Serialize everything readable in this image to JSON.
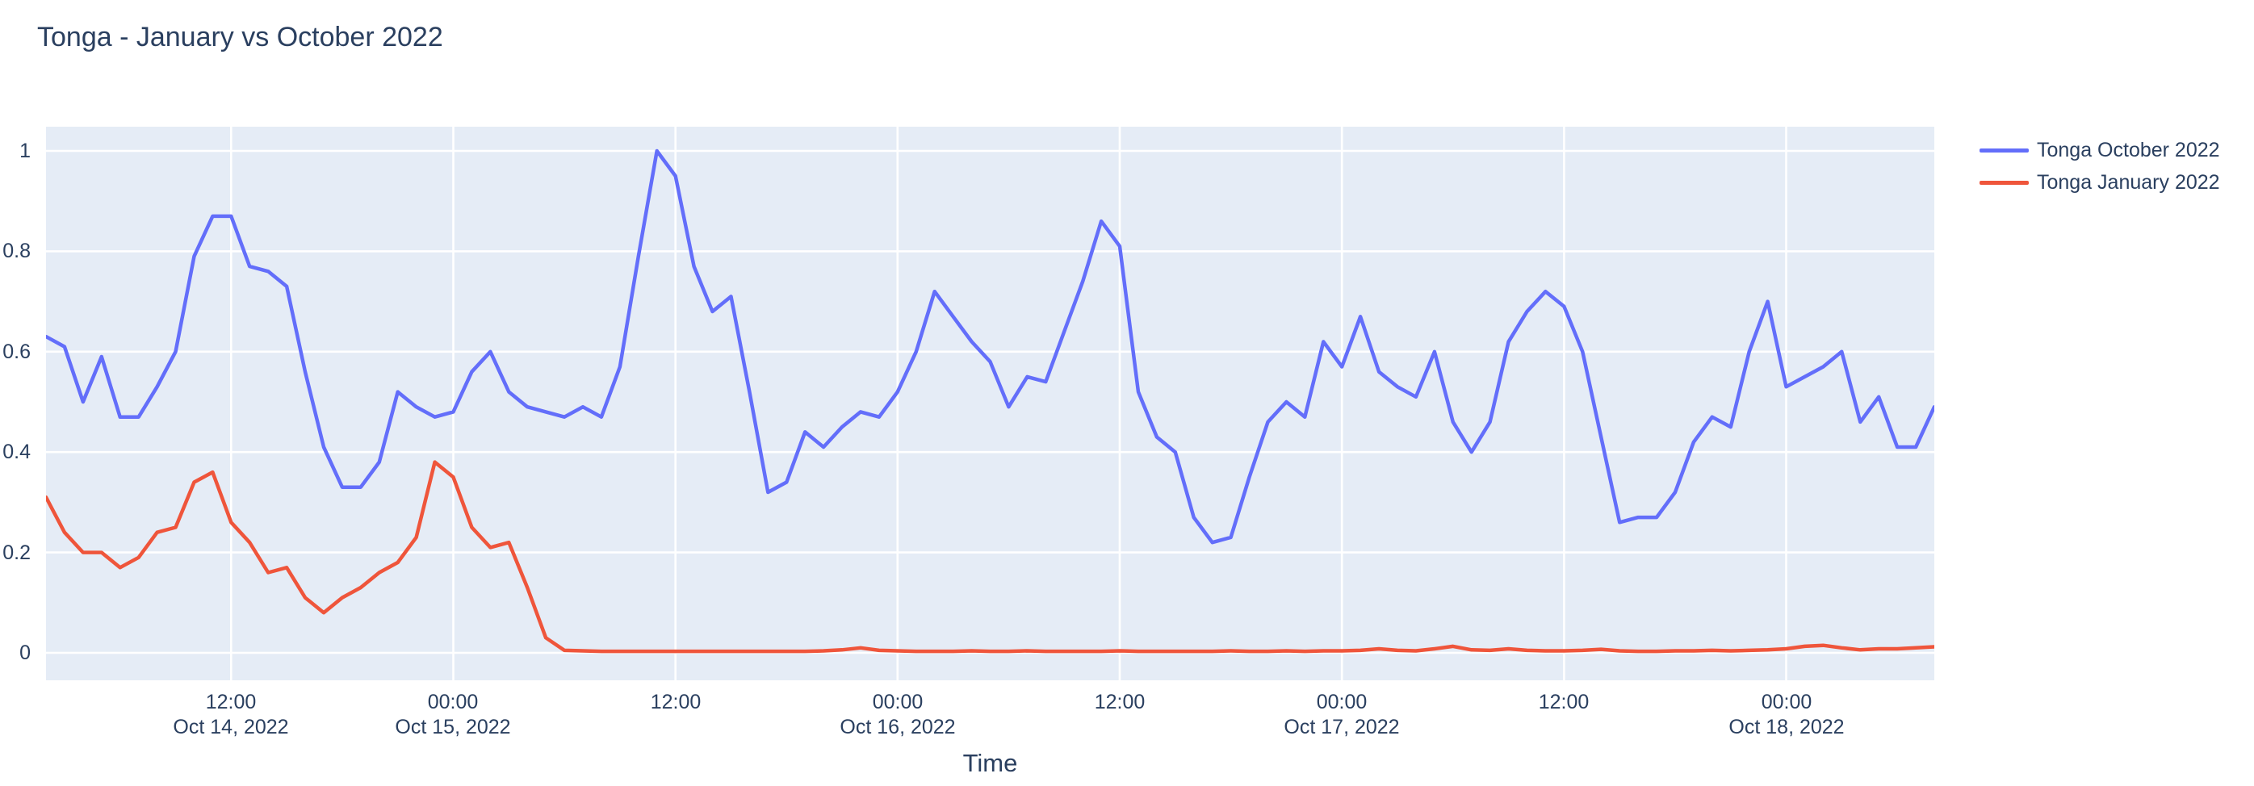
{
  "title": "Tonga - January vs October 2022",
  "colors": {
    "page_background": "#ffffff",
    "plot_background": "#e5ecf6",
    "grid": "#ffffff",
    "font": "#2a3f5f",
    "october_line": "#636efa",
    "january_line": "#ef553b"
  },
  "legend": {
    "position": "top-right-outside",
    "items": [
      {
        "label": "Tonga October 2022",
        "color": "#636efa"
      },
      {
        "label": "Tonga January 2022",
        "color": "#ef553b"
      }
    ]
  },
  "x_axis": {
    "title": "Time",
    "ticks": [
      {
        "hour": 10,
        "line1": "12:00",
        "line2": "Oct 14, 2022"
      },
      {
        "hour": 22,
        "line1": "00:00",
        "line2": "Oct 15, 2022"
      },
      {
        "hour": 34,
        "line1": "12:00",
        "line2": ""
      },
      {
        "hour": 46,
        "line1": "00:00",
        "line2": "Oct 16, 2022"
      },
      {
        "hour": 58,
        "line1": "12:00",
        "line2": ""
      },
      {
        "hour": 70,
        "line1": "00:00",
        "line2": "Oct 17, 2022"
      },
      {
        "hour": 82,
        "line1": "12:00",
        "line2": ""
      },
      {
        "hour": 94,
        "line1": "00:00",
        "line2": "Oct 18, 2022"
      }
    ]
  },
  "y_axis": {
    "ticks": [
      {
        "value": 0,
        "label": "0"
      },
      {
        "value": 0.2,
        "label": "0.2"
      },
      {
        "value": 0.4,
        "label": "0.4"
      },
      {
        "value": 0.6,
        "label": "0.6"
      },
      {
        "value": 0.8,
        "label": "0.8"
      },
      {
        "value": 1,
        "label": "1"
      }
    ]
  },
  "chart_data": {
    "type": "line",
    "title": "Tonga - January vs October 2022",
    "xlabel": "Time",
    "ylabel": "",
    "x_start": "2022-10-14 02:00",
    "x_end": "2022-10-18 08:00",
    "x_interval_hours": 1,
    "ylim": [
      0,
      1
    ],
    "grid": true,
    "legend_position": "right",
    "series": [
      {
        "name": "Tonga October 2022",
        "color": "#636efa",
        "values": [
          0.63,
          0.61,
          0.5,
          0.59,
          0.47,
          0.47,
          0.53,
          0.6,
          0.79,
          0.87,
          0.87,
          0.77,
          0.76,
          0.73,
          0.56,
          0.41,
          0.33,
          0.33,
          0.38,
          0.52,
          0.49,
          0.47,
          0.48,
          0.56,
          0.6,
          0.52,
          0.49,
          0.48,
          0.47,
          0.49,
          0.47,
          0.57,
          0.79,
          1.0,
          0.95,
          0.77,
          0.68,
          0.71,
          0.52,
          0.32,
          0.34,
          0.44,
          0.41,
          0.45,
          0.48,
          0.47,
          0.52,
          0.6,
          0.72,
          0.67,
          0.62,
          0.58,
          0.49,
          0.55,
          0.54,
          0.64,
          0.74,
          0.86,
          0.81,
          0.52,
          0.43,
          0.4,
          0.27,
          0.22,
          0.23,
          0.35,
          0.46,
          0.5,
          0.47,
          0.62,
          0.57,
          0.67,
          0.56,
          0.53,
          0.51,
          0.6,
          0.46,
          0.4,
          0.46,
          0.62,
          0.68,
          0.72,
          0.69,
          0.6,
          0.43,
          0.26,
          0.27,
          0.27,
          0.32,
          0.42,
          0.47,
          0.45,
          0.6,
          0.7,
          0.53,
          0.55,
          0.57,
          0.6,
          0.46,
          0.51,
          0.41,
          0.41,
          0.49
        ]
      },
      {
        "name": "Tonga January 2022",
        "color": "#ef553b",
        "values": [
          0.31,
          0.24,
          0.2,
          0.2,
          0.17,
          0.19,
          0.24,
          0.25,
          0.34,
          0.36,
          0.26,
          0.22,
          0.16,
          0.17,
          0.11,
          0.08,
          0.11,
          0.13,
          0.16,
          0.18,
          0.23,
          0.38,
          0.35,
          0.25,
          0.21,
          0.22,
          0.13,
          0.03,
          0.005,
          0.004,
          0.003,
          0.003,
          0.003,
          0.003,
          0.003,
          0.003,
          0.003,
          0.003,
          0.003,
          0.003,
          0.003,
          0.003,
          0.004,
          0.006,
          0.01,
          0.005,
          0.004,
          0.003,
          0.003,
          0.003,
          0.004,
          0.003,
          0.003,
          0.004,
          0.003,
          0.003,
          0.003,
          0.003,
          0.004,
          0.003,
          0.003,
          0.003,
          0.003,
          0.003,
          0.004,
          0.003,
          0.003,
          0.004,
          0.003,
          0.004,
          0.004,
          0.005,
          0.008,
          0.005,
          0.004,
          0.008,
          0.013,
          0.006,
          0.005,
          0.008,
          0.005,
          0.004,
          0.004,
          0.005,
          0.007,
          0.004,
          0.003,
          0.003,
          0.004,
          0.004,
          0.005,
          0.004,
          0.005,
          0.006,
          0.008,
          0.013,
          0.015,
          0.01,
          0.006,
          0.008,
          0.008,
          0.01,
          0.012
        ]
      }
    ]
  }
}
